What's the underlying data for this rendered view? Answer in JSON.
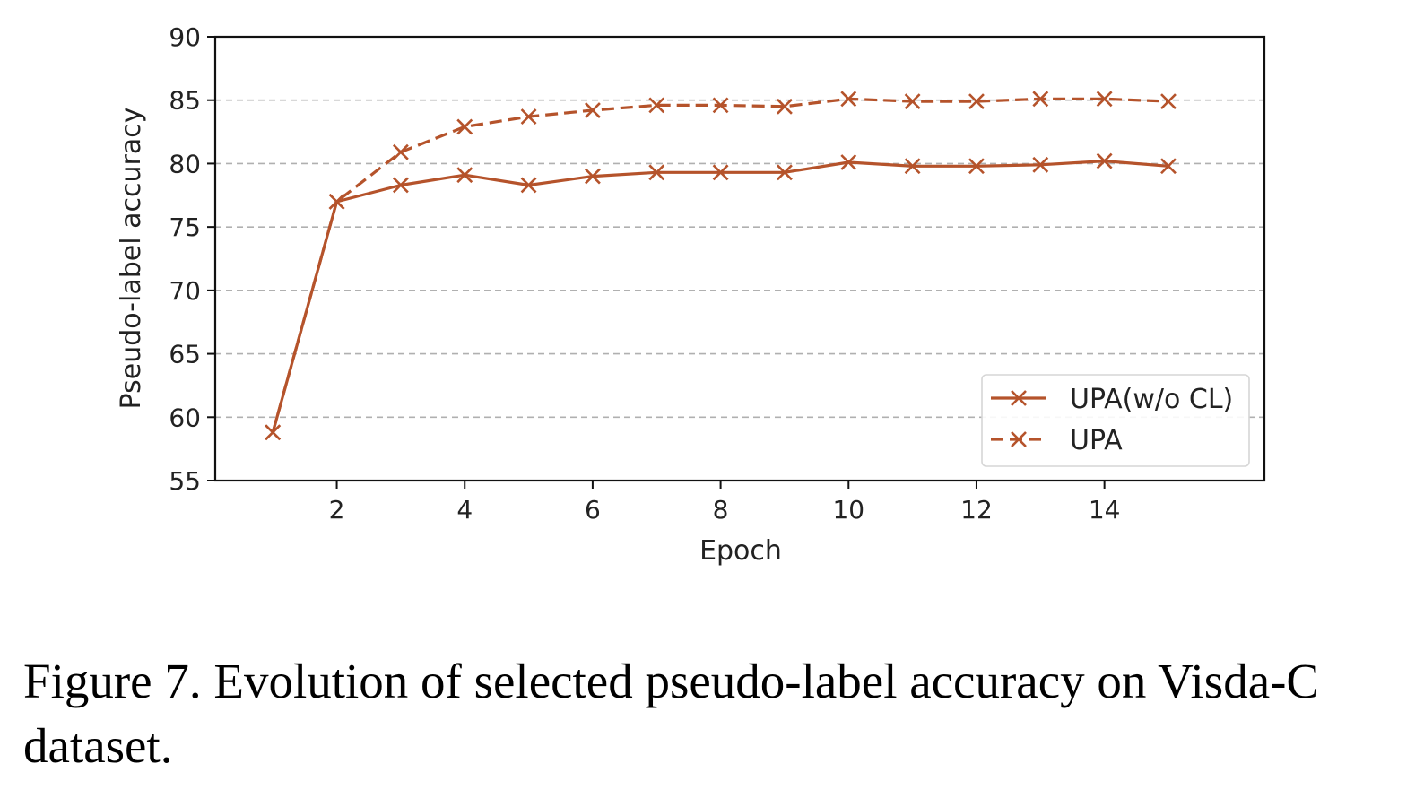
{
  "chart_data": {
    "type": "line",
    "xlabel": "Epoch",
    "ylabel": "Pseudo-label accuracy",
    "xlim": [
      0.1,
      16.5
    ],
    "ylim": [
      55,
      90
    ],
    "xticks": [
      2,
      4,
      6,
      8,
      10,
      12,
      14
    ],
    "yticks": [
      55,
      60,
      65,
      70,
      75,
      80,
      85,
      90
    ],
    "grid": "horizontal dashed",
    "legend_position": "lower right",
    "x": [
      1,
      2,
      3,
      4,
      5,
      6,
      7,
      8,
      9,
      10,
      11,
      12,
      13,
      14,
      15
    ],
    "series": [
      {
        "name": "UPA(w/o CL)",
        "line_style": "solid",
        "marker": "x",
        "color": "#b5532b",
        "values": [
          58.8,
          77.0,
          78.3,
          79.1,
          78.3,
          79.0,
          79.3,
          79.3,
          79.3,
          80.1,
          79.8,
          79.8,
          79.9,
          80.2,
          79.8
        ]
      },
      {
        "name": "UPA",
        "line_style": "dashed",
        "marker": "x",
        "color": "#b5532b",
        "values": [
          58.8,
          77.0,
          80.9,
          82.9,
          83.7,
          84.2,
          84.6,
          84.6,
          84.5,
          85.1,
          84.9,
          84.9,
          85.1,
          85.1,
          84.9
        ]
      }
    ]
  },
  "caption": "Figure 7. Evolution of selected pseudo-label accuracy on Visda-C dataset."
}
